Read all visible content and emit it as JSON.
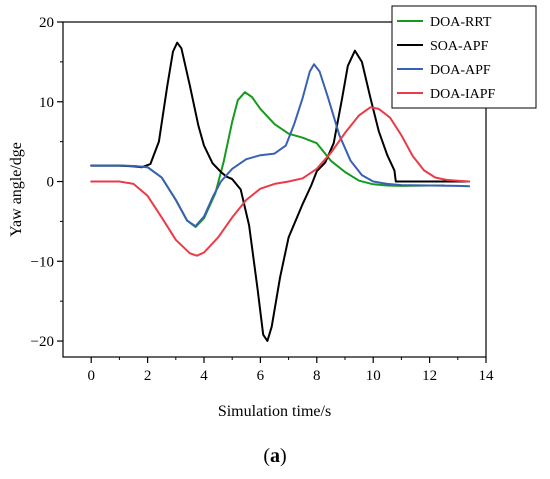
{
  "chart_data": {
    "type": "line",
    "xlabel": "Simulation time/s",
    "ylabel": "Yaw angle/dge",
    "xlim": [
      -1,
      14
    ],
    "ylim": [
      -22,
      20
    ],
    "xticks": [
      0,
      2,
      4,
      6,
      8,
      10,
      12,
      14
    ],
    "yticks": [
      -20,
      -10,
      0,
      10,
      20
    ],
    "legend_position": "top-right",
    "grid": false,
    "series": [
      {
        "name": "DOA-RRT",
        "color": "#159a1c",
        "points": [
          [
            0,
            2
          ],
          [
            1,
            2
          ],
          [
            1.5,
            1.95
          ],
          [
            2,
            1.8
          ],
          [
            2.5,
            0.5
          ],
          [
            3,
            -2.3
          ],
          [
            3.4,
            -4.9
          ],
          [
            3.7,
            -5.7
          ],
          [
            4,
            -4.6
          ],
          [
            4.4,
            -1.5
          ],
          [
            4.7,
            2.5
          ],
          [
            5,
            7.5
          ],
          [
            5.2,
            10.2
          ],
          [
            5.45,
            11.2
          ],
          [
            5.7,
            10.6
          ],
          [
            6,
            9.1
          ],
          [
            6.5,
            7.2
          ],
          [
            7,
            6
          ],
          [
            7.5,
            5.5
          ],
          [
            8,
            4.8
          ],
          [
            8.5,
            2.6
          ],
          [
            9,
            1.2
          ],
          [
            9.5,
            0.1
          ],
          [
            10,
            -0.35
          ],
          [
            10.5,
            -0.5
          ],
          [
            11,
            -0.55
          ],
          [
            12,
            -0.5
          ],
          [
            12.5,
            -0.5
          ]
        ]
      },
      {
        "name": "SOA-APF",
        "color": "#000000",
        "points": [
          [
            0,
            2
          ],
          [
            1,
            2
          ],
          [
            1.5,
            1.9
          ],
          [
            1.8,
            1.8
          ],
          [
            2.1,
            2.2
          ],
          [
            2.4,
            5
          ],
          [
            2.7,
            12
          ],
          [
            2.9,
            16.3
          ],
          [
            3.05,
            17.4
          ],
          [
            3.2,
            16.7
          ],
          [
            3.5,
            12
          ],
          [
            3.8,
            7
          ],
          [
            4,
            4.5
          ],
          [
            4.3,
            2.3
          ],
          [
            4.6,
            1.2
          ],
          [
            4.8,
            0.6
          ],
          [
            5,
            0.3
          ],
          [
            5.3,
            -1
          ],
          [
            5.6,
            -5.5
          ],
          [
            5.9,
            -13.5
          ],
          [
            6.1,
            -19.2
          ],
          [
            6.25,
            -20
          ],
          [
            6.4,
            -18.2
          ],
          [
            6.7,
            -12
          ],
          [
            7,
            -7
          ],
          [
            7.5,
            -2.8
          ],
          [
            7.8,
            -0.5
          ],
          [
            8,
            1.3
          ],
          [
            8.3,
            2.4
          ],
          [
            8.6,
            4.8
          ],
          [
            8.9,
            10.5
          ],
          [
            9.1,
            14.5
          ],
          [
            9.35,
            16.4
          ],
          [
            9.6,
            15
          ],
          [
            9.9,
            10.5
          ],
          [
            10.2,
            6.3
          ],
          [
            10.5,
            3.3
          ],
          [
            10.75,
            1.4
          ],
          [
            10.8,
            0
          ],
          [
            11,
            0
          ],
          [
            12,
            0
          ],
          [
            13.4,
            0
          ]
        ]
      },
      {
        "name": "DOA-APF",
        "color": "#3a60b4",
        "points": [
          [
            0,
            2
          ],
          [
            1,
            2
          ],
          [
            1.5,
            1.95
          ],
          [
            2,
            1.8
          ],
          [
            2.5,
            0.5
          ],
          [
            3,
            -2.3
          ],
          [
            3.4,
            -4.9
          ],
          [
            3.7,
            -5.6
          ],
          [
            4,
            -4.4
          ],
          [
            4.3,
            -2
          ],
          [
            4.6,
            0
          ],
          [
            5,
            1.6
          ],
          [
            5.5,
            2.8
          ],
          [
            6,
            3.3
          ],
          [
            6.5,
            3.5
          ],
          [
            6.9,
            4.5
          ],
          [
            7.2,
            7.2
          ],
          [
            7.5,
            10.5
          ],
          [
            7.75,
            13.8
          ],
          [
            7.9,
            14.7
          ],
          [
            8.1,
            13.8
          ],
          [
            8.4,
            10.5
          ],
          [
            8.8,
            5.8
          ],
          [
            9.2,
            2.6
          ],
          [
            9.6,
            0.8
          ],
          [
            10,
            0
          ],
          [
            10.5,
            -0.3
          ],
          [
            11,
            -0.45
          ],
          [
            12,
            -0.5
          ],
          [
            13,
            -0.55
          ],
          [
            13.4,
            -0.6
          ]
        ]
      },
      {
        "name": "DOA-IAPF",
        "color": "#eb3b49",
        "points": [
          [
            0,
            0
          ],
          [
            1,
            0
          ],
          [
            1.5,
            -0.3
          ],
          [
            2,
            -1.8
          ],
          [
            2.5,
            -4.5
          ],
          [
            3,
            -7.3
          ],
          [
            3.5,
            -9
          ],
          [
            3.75,
            -9.3
          ],
          [
            4,
            -8.9
          ],
          [
            4.5,
            -7
          ],
          [
            5,
            -4.5
          ],
          [
            5.5,
            -2.3
          ],
          [
            6,
            -0.9
          ],
          [
            6.5,
            -0.3
          ],
          [
            7,
            0
          ],
          [
            7.5,
            0.4
          ],
          [
            8,
            1.6
          ],
          [
            8.5,
            3.6
          ],
          [
            9,
            6.1
          ],
          [
            9.5,
            8.3
          ],
          [
            9.9,
            9.3
          ],
          [
            10.2,
            9.1
          ],
          [
            10.6,
            8
          ],
          [
            11,
            5.8
          ],
          [
            11.4,
            3.2
          ],
          [
            11.8,
            1.4
          ],
          [
            12.2,
            0.5
          ],
          [
            12.6,
            0.2
          ],
          [
            13,
            0.1
          ],
          [
            13.4,
            0
          ]
        ]
      }
    ]
  },
  "caption": {
    "open": "(",
    "letter": "a",
    "close": ")"
  }
}
